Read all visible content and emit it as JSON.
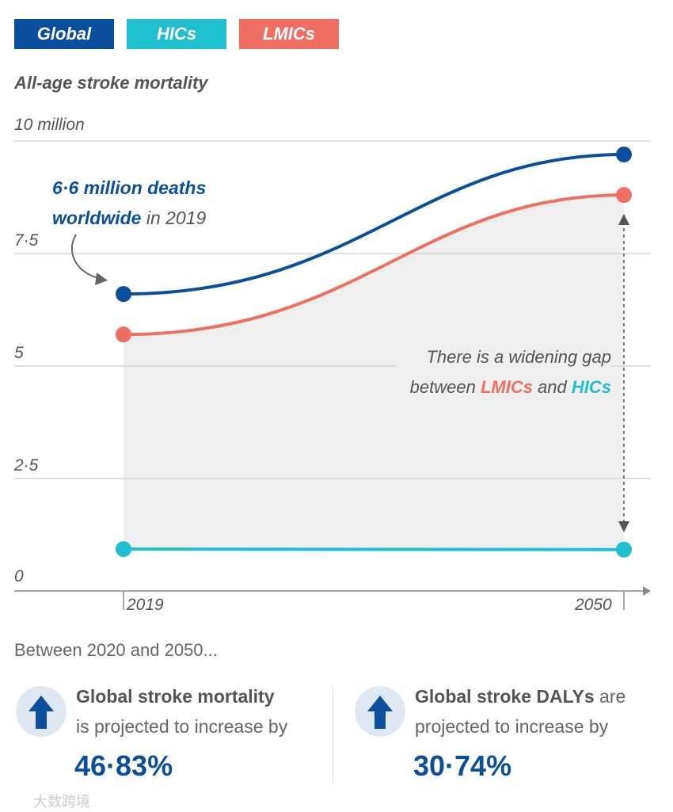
{
  "colors": {
    "global": "#0b4f9c",
    "hics": "#1fbfcf",
    "lmics": "#ef6f62",
    "area": "#efefef",
    "grid": "#d6d6d6"
  },
  "chart_data": {
    "type": "line",
    "title": "All-age stroke mortality",
    "x": [
      2019,
      2050
    ],
    "x_tick_labels": [
      "2019",
      "2050"
    ],
    "y_tick_labels": [
      "0",
      "2·5",
      "5",
      "7·5",
      "10 million"
    ],
    "y_ticks": [
      0,
      2.5,
      5,
      7.5,
      10
    ],
    "ylim": [
      0,
      10
    ],
    "series": [
      {
        "name": "Global",
        "values": [
          6.6,
          9.7
        ]
      },
      {
        "name": "HICs",
        "values": [
          0.93,
          0.92
        ]
      },
      {
        "name": "LMICs",
        "values": [
          5.7,
          8.8
        ]
      }
    ],
    "legend": [
      "Global",
      "HICs",
      "LMICs"
    ],
    "legend_position": "top-left",
    "annotations": {
      "global_bold": "6·6 million deaths",
      "global_bold2": "worldwide",
      "global_rest": " in 2019",
      "gap_line1": "There is a widening gap",
      "gap_pre": "between ",
      "gap_lmics": "LMICs",
      "gap_and": " and ",
      "gap_hics": "HICs"
    }
  },
  "footer": {
    "intro": "Between 2020 and 2050...",
    "stats": [
      {
        "bold": "Global stroke mortality",
        "rest": "is projected to increase by",
        "value": "46·83%",
        "icon": "arrow-up-icon"
      },
      {
        "bold": "Global stroke DALYs",
        "bold_suffix": " are",
        "rest": "projected to increase by",
        "value": "30·74%",
        "icon": "arrow-up-icon"
      }
    ]
  },
  "watermark": "大数跨境"
}
